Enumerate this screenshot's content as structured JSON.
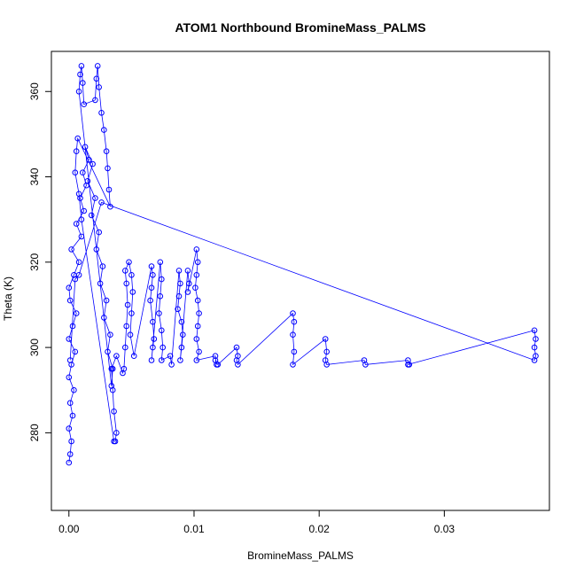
{
  "chart_data": {
    "type": "scatter",
    "title": "ATOM1 Northbound BromineMass_PALMS",
    "xlabel": "BromineMass_PALMS",
    "ylabel": "Theta (K)",
    "xlim": [
      -0.0014,
      0.0384
    ],
    "ylim": [
      261.8,
      369.4
    ],
    "x_ticks": [
      0.0,
      0.01,
      0.02,
      0.03
    ],
    "x_tick_labels": [
      "0.00",
      "0.01",
      "0.02",
      "0.03"
    ],
    "y_ticks": [
      280,
      300,
      320,
      340,
      360
    ],
    "y_tick_labels": [
      "280",
      "300",
      "320",
      "340",
      "360"
    ],
    "grid": false,
    "legend": "none",
    "marker": "open-circle",
    "connect_points": true,
    "series_color": "#0000ff",
    "series": [
      {
        "x": [
          0.0,
          0.0001,
          0.0002,
          0.0,
          0.0003,
          0.0001,
          0.0004,
          0.0,
          0.0002,
          0.0005,
          0.0,
          0.0003,
          0.0006,
          0.0001,
          0.0,
          0.0004,
          0.0008,
          0.0002,
          0.001,
          0.0006,
          0.0012,
          0.0009,
          0.0014,
          0.0011,
          0.0016,
          0.0013,
          0.0019,
          0.0015,
          0.0021,
          0.0018,
          0.0024,
          0.0022,
          0.0027,
          0.0025,
          0.003,
          0.0028,
          0.0033,
          0.0031,
          0.0035,
          0.0034,
          0.0008,
          0.0009,
          0.001,
          0.0011,
          0.0012,
          0.0021,
          0.0022,
          0.0023,
          0.0024,
          0.0026,
          0.0028,
          0.003,
          0.0031,
          0.0032,
          0.0033,
          0.0007,
          0.0006,
          0.0005,
          0.0008,
          0.001,
          0.0036,
          0.0037,
          0.0038,
          0.0036,
          0.0035,
          0.0034,
          0.0038,
          0.0043,
          0.0044,
          0.0045,
          0.0046,
          0.0047,
          0.0046,
          0.0045,
          0.0048,
          0.005,
          0.0051,
          0.005,
          0.0049,
          0.0052,
          0.0066,
          0.0067,
          0.0066,
          0.0065,
          0.0067,
          0.0068,
          0.0067,
          0.0066,
          0.0073,
          0.0074,
          0.0073,
          0.0072,
          0.0074,
          0.0075,
          0.0074,
          0.0081,
          0.0082,
          0.0088,
          0.0089,
          0.0088,
          0.0087,
          0.009,
          0.0091,
          0.009,
          0.0089,
          0.0095,
          0.0096,
          0.0095,
          0.0102,
          0.0103,
          0.0102,
          0.0101,
          0.0103,
          0.0104,
          0.0103,
          0.0102,
          0.0104,
          0.0102,
          0.0117,
          0.0118,
          0.0117,
          0.0119,
          0.0134,
          0.0135,
          0.0134,
          0.0135,
          0.0179,
          0.018,
          0.0179,
          0.018,
          0.0179,
          0.0205,
          0.0206,
          0.0205,
          0.0206,
          0.0236,
          0.0237,
          0.0271,
          0.0272,
          0.0271,
          0.0372,
          0.0373,
          0.0372,
          0.0373,
          0.0372,
          0.0026,
          0.0008,
          0.0005,
          0.0001
        ],
        "y": [
          273,
          275,
          278,
          281,
          284,
          287,
          290,
          293,
          296,
          299,
          302,
          305,
          308,
          311,
          314,
          317,
          320,
          323,
          326,
          329,
          332,
          335,
          338,
          341,
          344,
          347,
          343,
          339,
          335,
          331,
          327,
          323,
          319,
          315,
          311,
          307,
          303,
          299,
          295,
          291,
          360,
          364,
          366,
          362,
          357,
          358,
          363,
          366,
          361,
          355,
          351,
          346,
          342,
          337,
          333,
          349,
          346,
          341,
          336,
          330,
          278,
          278,
          280,
          285,
          290,
          295,
          298,
          294,
          295,
          300,
          305,
          310,
          315,
          318,
          320,
          317,
          313,
          308,
          303,
          298,
          319,
          317,
          314,
          311,
          306,
          302,
          300,
          297,
          320,
          316,
          312,
          308,
          304,
          300,
          297,
          298,
          296,
          318,
          315,
          312,
          309,
          306,
          303,
          300,
          297,
          318,
          315,
          313,
          323,
          320,
          317,
          314,
          311,
          308,
          305,
          302,
          299,
          297,
          298,
          296,
          297,
          296,
          300,
          298,
          297,
          296,
          308,
          306,
          303,
          299,
          296,
          302,
          299,
          297,
          296,
          297,
          296,
          297,
          296,
          296,
          304,
          302,
          300,
          298,
          297,
          334,
          317,
          316,
          297
        ]
      }
    ]
  }
}
